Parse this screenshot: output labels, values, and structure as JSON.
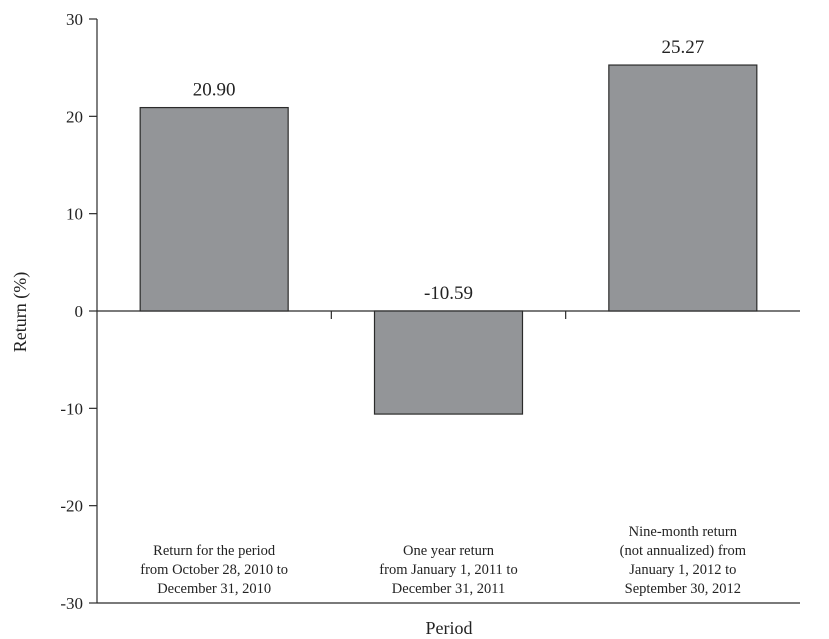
{
  "chart_data": {
    "type": "bar",
    "title": "",
    "xlabel": "Period",
    "ylabel": "Return (%)",
    "ylim": [
      -30,
      30
    ],
    "yticks": [
      30,
      20,
      10,
      0,
      -10,
      -20,
      -30
    ],
    "ytick_labels": [
      "30",
      "20",
      "10",
      "0",
      "-10",
      "-20",
      "-30"
    ],
    "categories": [
      [
        "Return for the period",
        "from October 28, 2010 to",
        "December 31, 2010"
      ],
      [
        "One year return",
        "from January 1, 2011 to",
        "December 31, 2011"
      ],
      [
        "Nine-month return",
        "(not annualized) from",
        "January 1, 2012 to",
        "September 30, 2012"
      ]
    ],
    "values": [
      20.9,
      -10.59,
      25.27
    ],
    "data_labels": [
      "20.90",
      "-10.59",
      "25.27"
    ],
    "grid": false,
    "legend": "none",
    "colors": {
      "bar": "#939598",
      "edge": "#2b2b2b"
    }
  }
}
